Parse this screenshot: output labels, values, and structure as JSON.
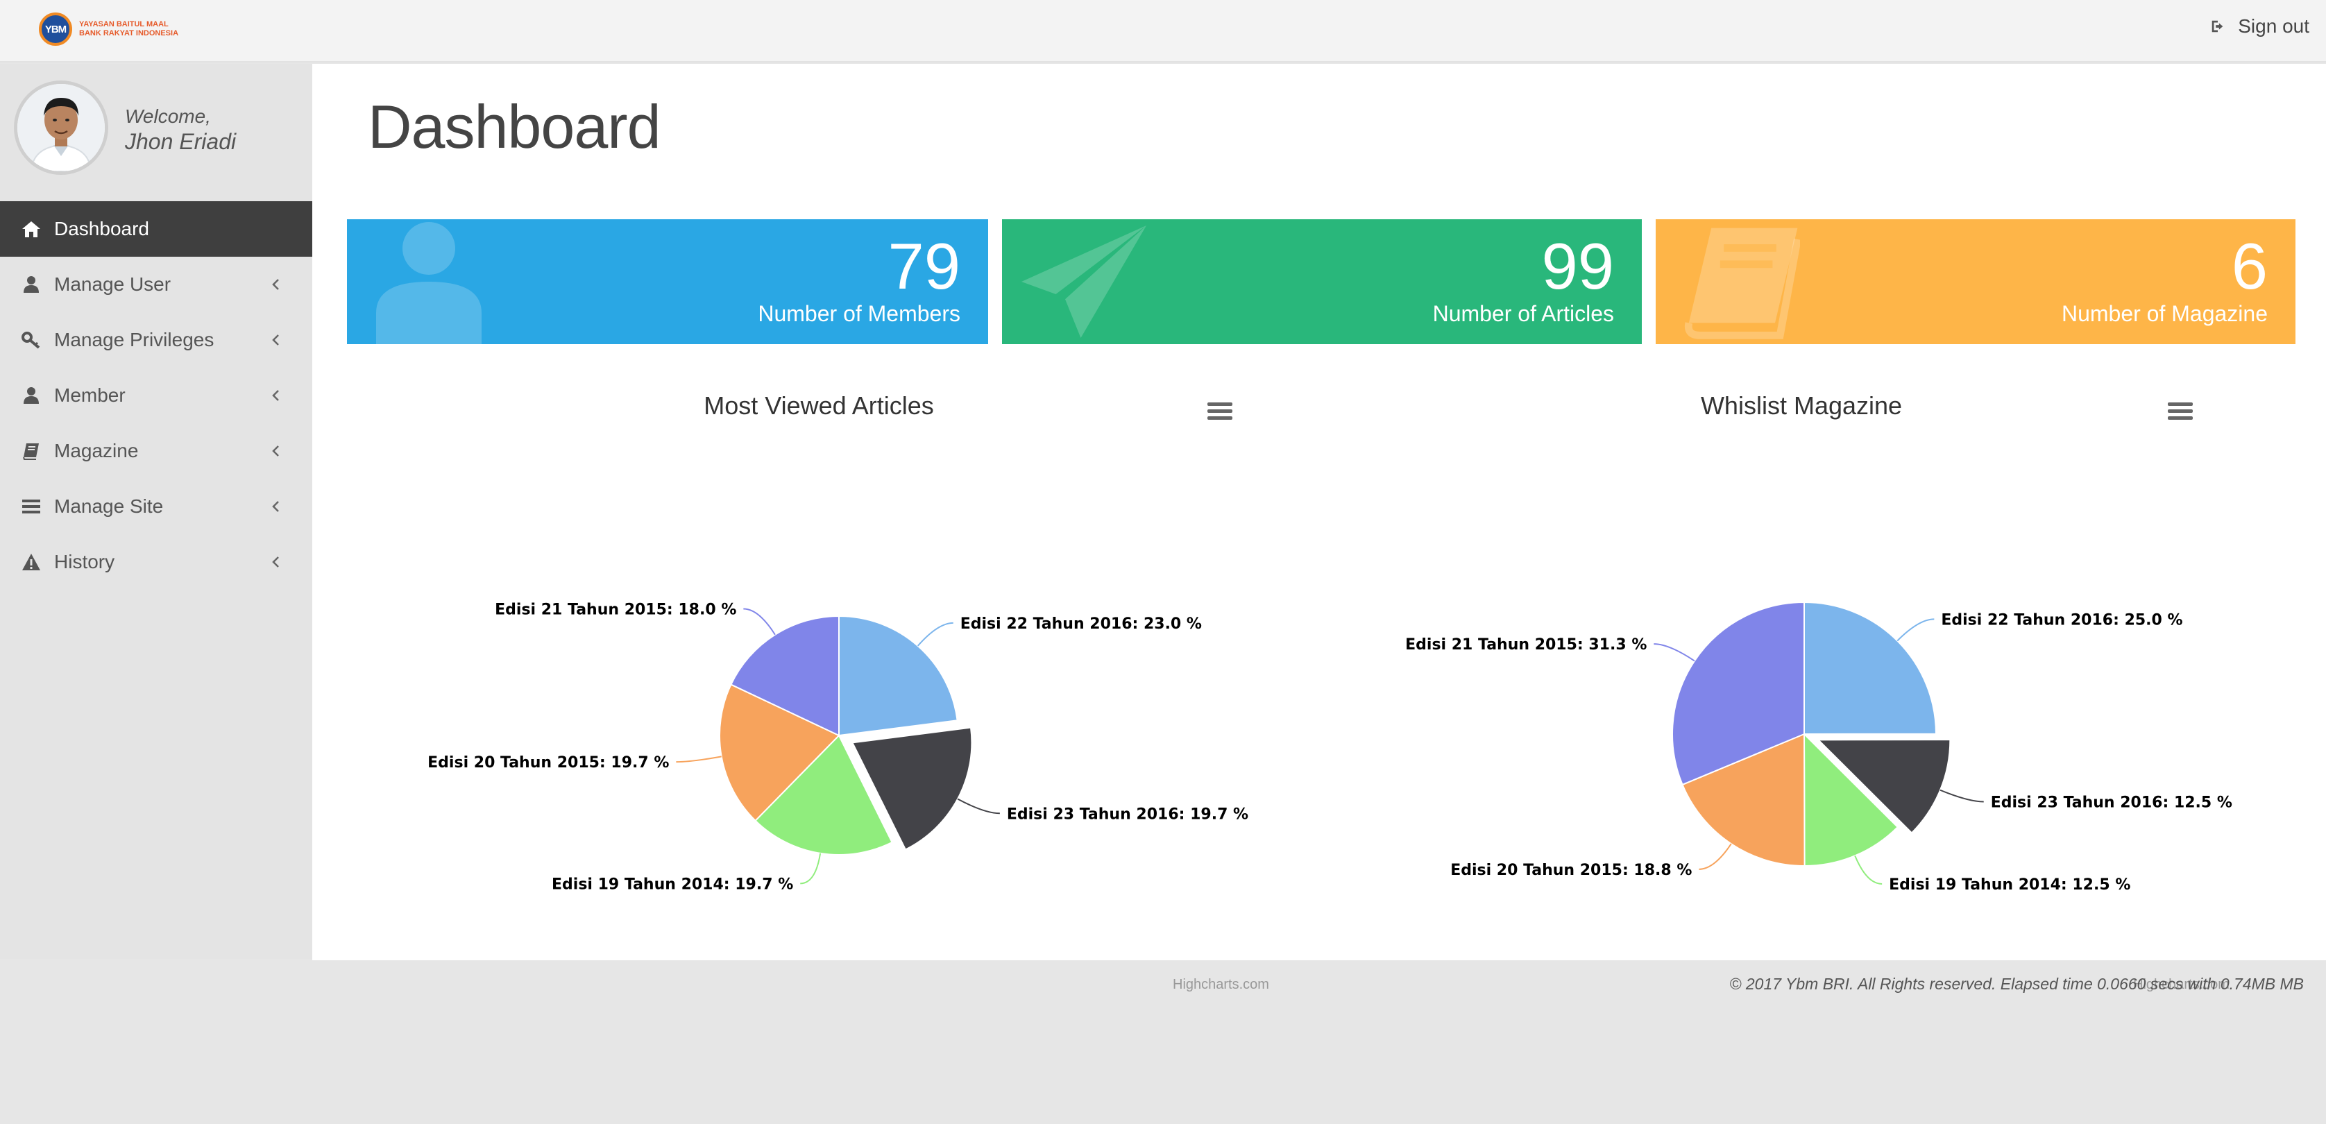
{
  "header": {
    "logo_mark": "YBM",
    "logo_line1": "YAYASAN BAITUL MAAL",
    "logo_line2": "BANK RAKYAT INDONESIA",
    "signout_label": "Sign out"
  },
  "user": {
    "welcome_label": "Welcome,",
    "name": "Jhon Eriadi"
  },
  "sidebar": {
    "items": [
      {
        "label": "Dashboard",
        "icon": "home-icon",
        "active": true
      },
      {
        "label": "Manage User",
        "icon": "user-icon",
        "active": false
      },
      {
        "label": "Manage Privileges",
        "icon": "key-icon",
        "active": false
      },
      {
        "label": "Member",
        "icon": "user-icon",
        "active": false
      },
      {
        "label": "Magazine",
        "icon": "book-icon",
        "active": false
      },
      {
        "label": "Manage Site",
        "icon": "list-icon",
        "active": false
      },
      {
        "label": "History",
        "icon": "warning-icon",
        "active": false
      }
    ]
  },
  "page": {
    "title": "Dashboard"
  },
  "stats": [
    {
      "value": "79",
      "label": "Number of Members",
      "color": "#2aa7e4",
      "icon": "user-icon"
    },
    {
      "value": "99",
      "label": "Number of Articles",
      "color": "#29b77b",
      "icon": "paper-plane-icon"
    },
    {
      "value": "6",
      "label": "Number of Magazine",
      "color": "#feb548",
      "icon": "book-icon"
    }
  ],
  "chart_data": [
    {
      "type": "pie",
      "title": "Most Viewed Articles",
      "credit": "Highcharts.com",
      "slices": [
        {
          "name": "Edisi 22 Tahun 2016",
          "value": 23.0,
          "color": "#7cb5ec",
          "label": "Edisi 22 Tahun 2016: 23.0 %"
        },
        {
          "name": "Edisi 23 Tahun 2016",
          "value": 19.7,
          "color": "#434348",
          "label": "Edisi 23 Tahun 2016: 19.7 %",
          "sliced": true
        },
        {
          "name": "Edisi 19 Tahun 2014",
          "value": 19.7,
          "color": "#90ed7d",
          "label": "Edisi 19 Tahun 2014: 19.7 %"
        },
        {
          "name": "Edisi 20 Tahun 2015",
          "value": 19.7,
          "color": "#f7a35c",
          "label": "Edisi 20 Tahun 2015: 19.7 %"
        },
        {
          "name": "Edisi 21 Tahun 2015",
          "value": 18.0,
          "color": "#8085e9",
          "label": "Edisi 21 Tahun 2015: 18.0 %"
        }
      ]
    },
    {
      "type": "pie",
      "title": "Whislist Magazine",
      "credit": "Highcharts.com",
      "slices": [
        {
          "name": "Edisi 22 Tahun 2016",
          "value": 25.0,
          "color": "#7cb5ec",
          "label": "Edisi 22 Tahun 2016: 25.0 %"
        },
        {
          "name": "Edisi 23 Tahun 2016",
          "value": 12.5,
          "color": "#434348",
          "label": "Edisi 23 Tahun 2016: 12.5 %",
          "sliced": true
        },
        {
          "name": "Edisi 19 Tahun 2014",
          "value": 12.5,
          "color": "#90ed7d",
          "label": "Edisi 19 Tahun 2014: 12.5 %"
        },
        {
          "name": "Edisi 20 Tahun 2015",
          "value": 18.8,
          "color": "#f7a35c",
          "label": "Edisi 20 Tahun 2015: 18.8 %"
        },
        {
          "name": "Edisi 21 Tahun 2015",
          "value": 31.3,
          "color": "#8085e9",
          "label": "Edisi 21 Tahun 2015: 31.3 %"
        }
      ]
    }
  ],
  "footer": {
    "text": "© 2017 Ybm BRI. All Rights reserved. Elapsed time 0.0660 secs with 0.74MB MB"
  }
}
